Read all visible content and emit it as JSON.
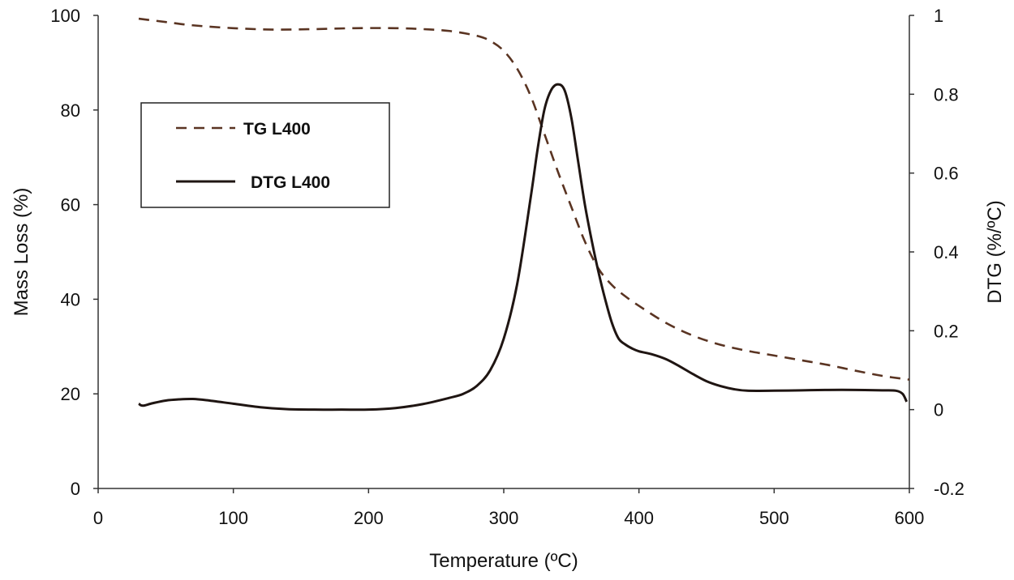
{
  "chart_data": {
    "type": "line",
    "title": "",
    "xlabel": "Temperature (ºC)",
    "ylabel_left": "Mass Loss (%)",
    "ylabel_right": "DTG (%/ºC)",
    "xlim": [
      0,
      600
    ],
    "ylim_left": [
      0,
      100
    ],
    "ylim_right": [
      -0.2,
      1
    ],
    "x_ticks": [
      "0",
      "100",
      "200",
      "300",
      "400",
      "500",
      "600"
    ],
    "y_left_ticks": [
      "0",
      "20",
      "40",
      "60",
      "80",
      "100"
    ],
    "y_right_ticks": [
      "-0.2",
      "0",
      "0.2",
      "0.4",
      "0.6",
      "0.8",
      "1"
    ],
    "grid": false,
    "legend_position": "upper-left",
    "series": [
      {
        "name": "TG L400",
        "axis": "left",
        "style": "dashed",
        "color": "#5a3422",
        "x": [
          30,
          50,
          70,
          100,
          130,
          160,
          190,
          220,
          240,
          260,
          280,
          290,
          300,
          310,
          320,
          330,
          340,
          350,
          360,
          370,
          380,
          390,
          400,
          420,
          440,
          460,
          480,
          500,
          520,
          540,
          560,
          580,
          600
        ],
        "y": [
          99.3,
          98.6,
          97.9,
          97.3,
          97.0,
          97.1,
          97.3,
          97.3,
          97.1,
          96.7,
          95.7,
          94.6,
          92.5,
          88.7,
          82.9,
          75.0,
          67.0,
          59.5,
          52.2,
          46.5,
          43.0,
          40.6,
          38.6,
          35.0,
          32.3,
          30.4,
          29.1,
          28.1,
          27.1,
          26.1,
          24.9,
          23.8,
          23.0
        ]
      },
      {
        "name": "DTG L400",
        "axis": "right",
        "style": "solid",
        "color": "#1f1512",
        "x": [
          30,
          33,
          40,
          50,
          60,
          70,
          80,
          100,
          120,
          140,
          160,
          180,
          200,
          220,
          240,
          260,
          270,
          280,
          290,
          300,
          310,
          320,
          325,
          330,
          335,
          340,
          345,
          350,
          355,
          360,
          365,
          370,
          375,
          380,
          385,
          390,
          395,
          400,
          410,
          420,
          430,
          440,
          450,
          460,
          470,
          480,
          500,
          520,
          540,
          560,
          580,
          590,
          595,
          598
        ],
        "y": [
          0.015,
          0.01,
          0.016,
          0.023,
          0.026,
          0.027,
          0.024,
          0.015,
          0.006,
          0.001,
          0.0,
          0.0,
          0.0,
          0.004,
          0.014,
          0.03,
          0.04,
          0.06,
          0.1,
          0.18,
          0.32,
          0.54,
          0.66,
          0.76,
          0.81,
          0.825,
          0.81,
          0.74,
          0.63,
          0.52,
          0.43,
          0.35,
          0.28,
          0.22,
          0.18,
          0.165,
          0.155,
          0.148,
          0.14,
          0.128,
          0.11,
          0.09,
          0.072,
          0.06,
          0.052,
          0.048,
          0.048,
          0.049,
          0.05,
          0.05,
          0.049,
          0.048,
          0.04,
          0.02
        ]
      }
    ]
  }
}
